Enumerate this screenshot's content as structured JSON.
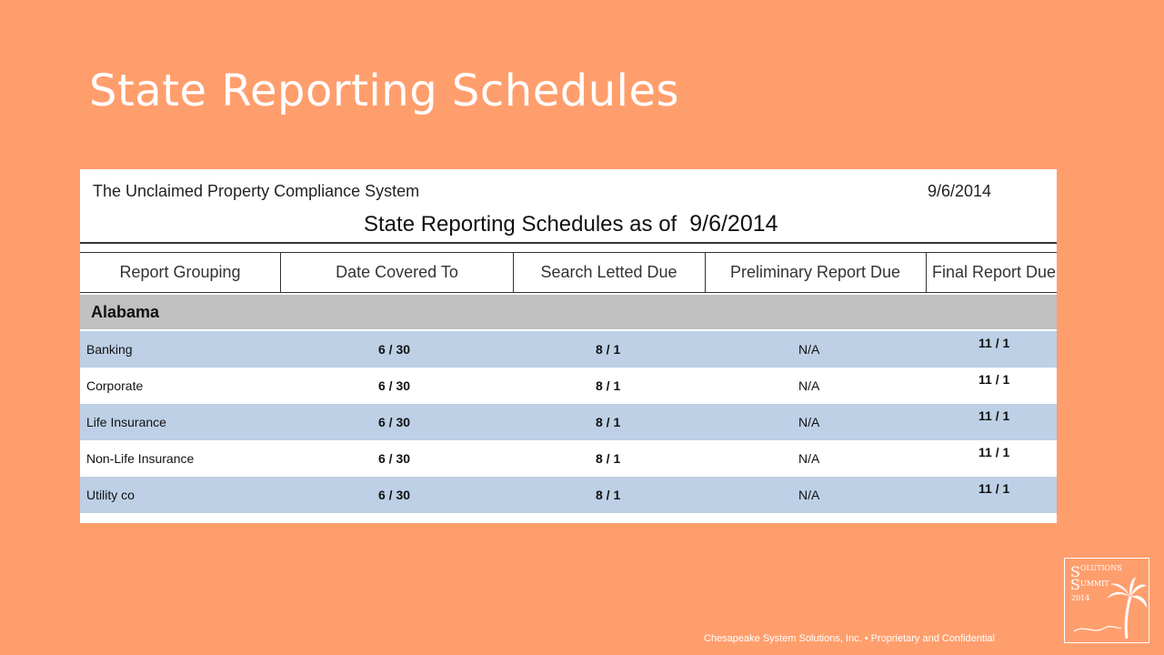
{
  "slide": {
    "title": "State Reporting Schedules",
    "footer": "Chesapeake System Solutions, Inc. • Proprietary and Confidential"
  },
  "logo": {
    "icon": "solutions-summit-logo",
    "text": "Solutions Summit 2014"
  },
  "report": {
    "system_name": "The Unclaimed Property Compliance System",
    "print_date": "9/6/2014",
    "heading": "State Reporting Schedules as of",
    "heading_date": "9/6/2014",
    "columns": [
      "Report Grouping",
      "Date Covered To",
      "Search Letted Due",
      "Preliminary Report Due",
      "Final Report Due"
    ],
    "group": "Alabama",
    "rows": [
      {
        "name": "Banking",
        "date_covered": "6 / 30",
        "search_due": "8 / 1",
        "prelim_due": "N/A",
        "final_due": "11 / 1"
      },
      {
        "name": "Corporate",
        "date_covered": "6 / 30",
        "search_due": "8 / 1",
        "prelim_due": "N/A",
        "final_due": "11 / 1"
      },
      {
        "name": "Life Insurance",
        "date_covered": "6 / 30",
        "search_due": "8 / 1",
        "prelim_due": "N/A",
        "final_due": "11 / 1"
      },
      {
        "name": "Non-Life Insurance",
        "date_covered": "6 / 30",
        "search_due": "8 / 1",
        "prelim_due": "N/A",
        "final_due": "11 / 1"
      },
      {
        "name": "Utility co",
        "date_covered": "6 / 30",
        "search_due": "8 / 1",
        "prelim_due": "N/A",
        "final_due": "11 / 1"
      }
    ]
  },
  "colors": {
    "background": "#FF9E6D",
    "row_blue": "#BDD0E6",
    "group_gray": "#C0C0C0"
  }
}
